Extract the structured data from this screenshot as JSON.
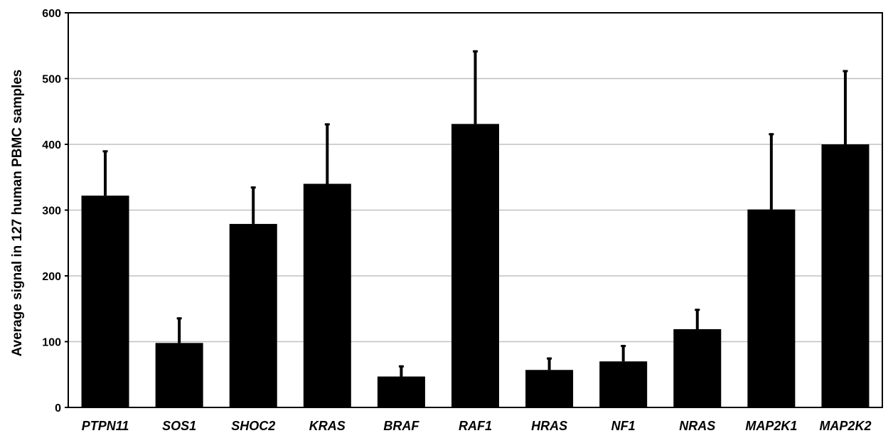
{
  "chart_data": {
    "type": "bar",
    "title": "",
    "xlabel": "",
    "ylabel": "Average signal in 127 human PBMC  samples",
    "ylim": [
      0,
      600
    ],
    "yticks": [
      0,
      100,
      200,
      300,
      400,
      500,
      600
    ],
    "grid": true,
    "categories": [
      "PTPN11",
      "SOS1",
      "SHOC2",
      "KRAS",
      "BRAF",
      "RAF1",
      "HRAS",
      "NF1",
      "NRAS",
      "MAP2K1",
      "MAP2K2"
    ],
    "values": [
      322,
      98,
      279,
      340,
      47,
      431,
      57,
      70,
      119,
      301,
      400
    ],
    "error_upper": [
      69,
      39,
      57,
      92,
      17,
      112,
      19,
      25,
      31,
      116,
      113
    ],
    "colors": {
      "bar": "#000000",
      "grid": "#c0c0c0",
      "axis": "#000000"
    }
  }
}
